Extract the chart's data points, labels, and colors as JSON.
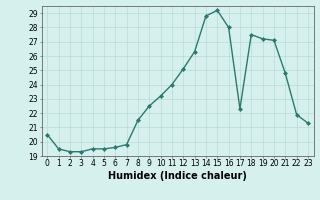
{
  "x": [
    0,
    1,
    2,
    3,
    4,
    5,
    6,
    7,
    8,
    9,
    10,
    11,
    12,
    13,
    14,
    15,
    16,
    17,
    18,
    19,
    20,
    21,
    22,
    23
  ],
  "y": [
    20.5,
    19.5,
    19.3,
    19.3,
    19.5,
    19.5,
    19.6,
    19.8,
    21.5,
    22.5,
    23.2,
    24.0,
    25.1,
    26.3,
    28.8,
    29.2,
    28.0,
    22.3,
    27.5,
    27.2,
    27.1,
    24.8,
    21.9,
    21.3
  ],
  "line_color": "#2a7a6f",
  "marker": "D",
  "marker_size": 2.0,
  "background_color": "#d6f0ed",
  "grid_color": "#b8dbd8",
  "xlabel": "Humidex (Indice chaleur)",
  "xlim": [
    -0.5,
    23.5
  ],
  "ylim": [
    19,
    29.5
  ],
  "yticks": [
    19,
    20,
    21,
    22,
    23,
    24,
    25,
    26,
    27,
    28,
    29
  ],
  "xticks": [
    0,
    1,
    2,
    3,
    4,
    5,
    6,
    7,
    8,
    9,
    10,
    11,
    12,
    13,
    14,
    15,
    16,
    17,
    18,
    19,
    20,
    21,
    22,
    23
  ],
  "tick_label_fontsize": 5.5,
  "xlabel_fontsize": 7.0,
  "line_width": 1.0
}
